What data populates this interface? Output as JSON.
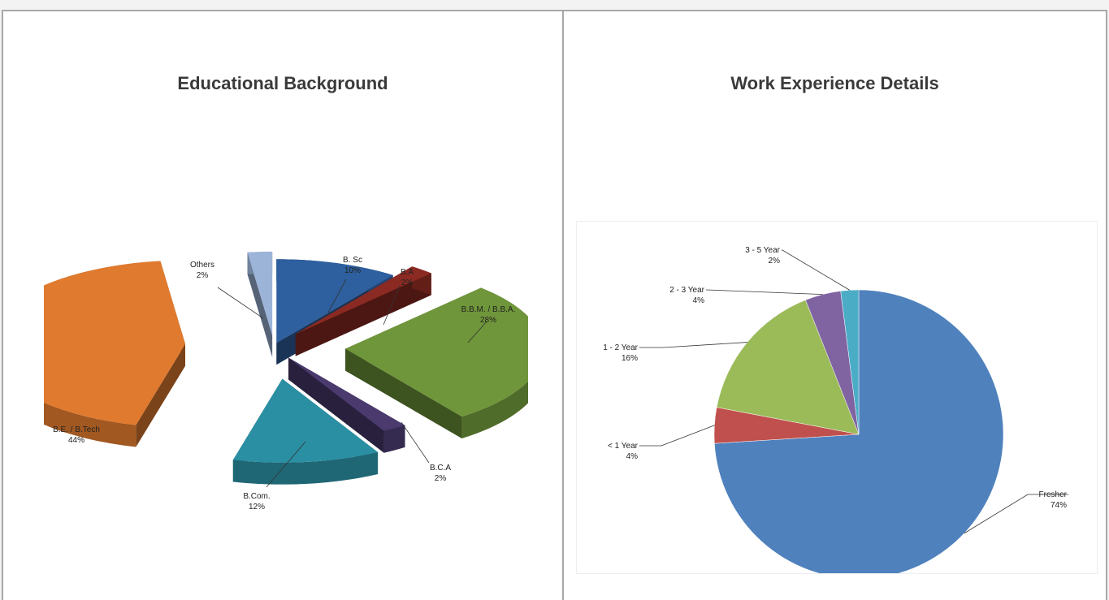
{
  "panels": [
    {
      "title": "Educational Background"
    },
    {
      "title": "Work Experience Details"
    }
  ],
  "chart_data": [
    {
      "type": "pie",
      "style": "3d-exploded",
      "title": "Educational Background",
      "slices": [
        {
          "label": "B. Sc",
          "value": 10,
          "value_label": "10%",
          "color": "#2e5f9e"
        },
        {
          "label": "B.A",
          "value": 2,
          "value_label": "2%",
          "color": "#8b2a22"
        },
        {
          "label": "B.B.M. / B.B.A.",
          "value": 28,
          "value_label": "28%",
          "color": "#6f963a"
        },
        {
          "label": "B.C.A",
          "value": 2,
          "value_label": "2%",
          "color": "#4a3a6e"
        },
        {
          "label": "B.Com.",
          "value": 12,
          "value_label": "12%",
          "color": "#2b8fa3"
        },
        {
          "label": "B.E. / B.Tech",
          "value": 44,
          "value_label": "44%",
          "color": "#e07a2e"
        },
        {
          "label": "Others",
          "value": 2,
          "value_label": "2%",
          "color": "#9cb4d8"
        }
      ]
    },
    {
      "type": "pie",
      "title": "Work Experience Details",
      "slices": [
        {
          "label": "Fresher",
          "value": 74,
          "value_label": "74%",
          "color": "#4f81bd"
        },
        {
          "label": "< 1 Year",
          "value": 4,
          "value_label": "4%",
          "color": "#c0504d"
        },
        {
          "label": "1 - 2 Year",
          "value": 16,
          "value_label": "16%",
          "color": "#9bbb59"
        },
        {
          "label": "2 - 3 Year",
          "value": 4,
          "value_label": "4%",
          "color": "#8064a2"
        },
        {
          "label": "3 - 5 Year",
          "value": 2,
          "value_label": "2%",
          "color": "#4bacc6"
        }
      ]
    }
  ]
}
